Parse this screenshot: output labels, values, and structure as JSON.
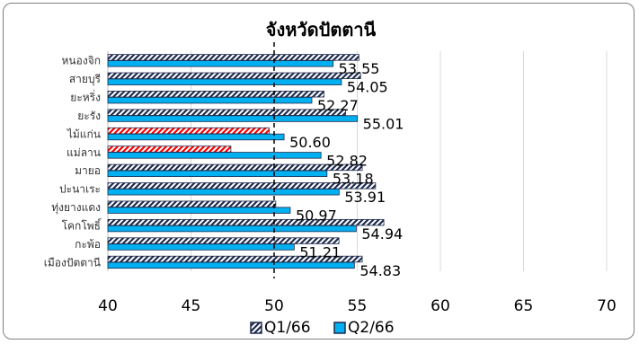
{
  "chart_data": {
    "type": "bar",
    "orientation": "horizontal",
    "title": "จังหวัดปัตตานี",
    "categories": [
      "หนองจิก",
      "สายบุรี",
      "ยะหริ่ง",
      "ยะรัง",
      "ไม้แก่น",
      "แม่ลาน",
      "มายอ",
      "ปะนาเระ",
      "ทุ่งยางแดง",
      "โคกโพธิ์",
      "กะพ้อ",
      "เมืองปัตตานี"
    ],
    "series": [
      {
        "name": "Q1/66",
        "values": [
          55.1,
          55.2,
          53.0,
          54.3,
          49.7,
          47.4,
          55.3,
          56.1,
          50.1,
          56.6,
          53.9,
          55.3
        ],
        "color": "#1f2b4d",
        "pattern": "diagonal-stripes"
      },
      {
        "name": "Q2/66",
        "values": [
          53.55,
          54.05,
          52.27,
          55.01,
          50.6,
          52.82,
          53.18,
          53.91,
          50.97,
          54.94,
          51.21,
          54.83
        ],
        "color": "#00b0f0",
        "pattern": "solid"
      }
    ],
    "highlight": {
      "categories": [
        "ไม้แก่น",
        "แม่ลาน"
      ],
      "series": "Q1/66",
      "color": "#ff0000"
    },
    "data_labels": {
      "series": "Q2/66",
      "labels": [
        "53.55",
        "54.05",
        "52.27",
        "55.01",
        "50.60",
        "52.82",
        "53.18",
        "53.91",
        "50.97",
        "54.94",
        "51.21",
        "54.83"
      ]
    },
    "xlim": [
      40,
      70
    ],
    "xticks": [
      40,
      45,
      50,
      55,
      60,
      65,
      70
    ],
    "reference_line": 50,
    "grid": true,
    "legend_position": "bottom"
  }
}
